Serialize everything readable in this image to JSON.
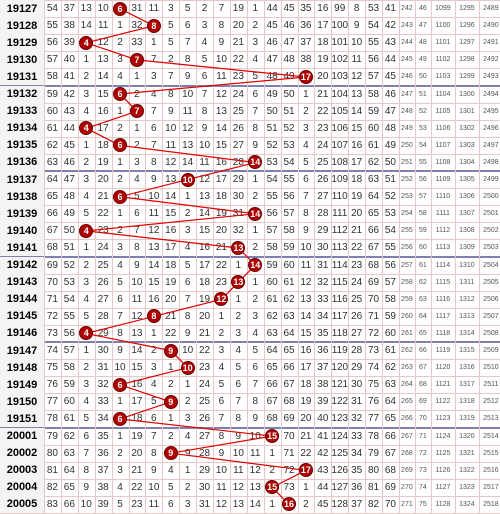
{
  "chart_data": {
    "type": "table",
    "title": "",
    "columns_visible": 21,
    "accent_color": "#b00000",
    "line_color": "#e00000",
    "rows": [
      {
        "issue": "19127",
        "cells": [
          "54",
          "37",
          "13",
          "10",
          "6",
          "31",
          "11",
          "3",
          "5",
          "2",
          "7",
          "19",
          "1",
          "44",
          "45",
          "35",
          "16",
          "99",
          "8",
          "53",
          "41",
          "242",
          "46",
          "1099",
          "1295",
          "2489"
        ],
        "ball": "6",
        "ball_col": 4
      },
      {
        "issue": "19128",
        "cells": [
          "55",
          "38",
          "14",
          "11",
          "1",
          "32",
          "8",
          "5",
          "6",
          "3",
          "8",
          "20",
          "2",
          "45",
          "46",
          "36",
          "17",
          "100",
          "9",
          "54",
          "42",
          "243",
          "47",
          "1100",
          "1296",
          "2490"
        ],
        "ball": "8",
        "ball_col": 6
      },
      {
        "issue": "19129",
        "cells": [
          "56",
          "39",
          "4",
          "12",
          "2",
          "33",
          "1",
          "5",
          "7",
          "4",
          "9",
          "21",
          "3",
          "46",
          "47",
          "37",
          "18",
          "101",
          "10",
          "55",
          "43",
          "244",
          "48",
          "1101",
          "1297",
          "2491"
        ],
        "ball": "4",
        "ball_col": 2
      },
      {
        "issue": "19130",
        "cells": [
          "57",
          "40",
          "1",
          "13",
          "3",
          "34",
          "7",
          "2",
          "8",
          "5",
          "10",
          "22",
          "4",
          "47",
          "48",
          "38",
          "19",
          "102",
          "11",
          "56",
          "44",
          "245",
          "49",
          "1102",
          "1298",
          "2492"
        ],
        "ball": "7",
        "ball_col": 5
      },
      {
        "issue": "19131",
        "cells": [
          "58",
          "41",
          "2",
          "14",
          "4",
          "1",
          "3",
          "7",
          "9",
          "6",
          "11",
          "23",
          "5",
          "48",
          "49",
          "17",
          "20",
          "103",
          "12",
          "57",
          "45",
          "246",
          "50",
          "1103",
          "1299",
          "2493"
        ],
        "ball": "17",
        "ball_col": 15
      },
      {
        "issue": "19132",
        "cells": [
          "59",
          "42",
          "3",
          "15",
          "6",
          "2",
          "4",
          "8",
          "10",
          "7",
          "12",
          "24",
          "6",
          "49",
          "50",
          "1",
          "21",
          "104",
          "13",
          "58",
          "46",
          "247",
          "51",
          "1104",
          "1300",
          "2494"
        ],
        "ball": "6",
        "ball_col": 4
      },
      {
        "issue": "19133",
        "cells": [
          "60",
          "43",
          "4",
          "16",
          "1",
          "3",
          "7",
          "9",
          "11",
          "8",
          "13",
          "25",
          "7",
          "50",
          "51",
          "2",
          "22",
          "105",
          "14",
          "59",
          "47",
          "248",
          "52",
          "1105",
          "1301",
          "2495"
        ],
        "ball": "7",
        "ball_col": 5
      },
      {
        "issue": "19134",
        "cells": [
          "61",
          "44",
          "4",
          "17",
          "2",
          "1",
          "6",
          "10",
          "12",
          "9",
          "14",
          "26",
          "8",
          "51",
          "52",
          "3",
          "23",
          "106",
          "15",
          "60",
          "48",
          "249",
          "53",
          "1106",
          "1302",
          "2496"
        ],
        "ball": "4",
        "ball_col": 2
      },
      {
        "issue": "19135",
        "cells": [
          "62",
          "45",
          "1",
          "18",
          "6",
          "2",
          "7",
          "11",
          "13",
          "10",
          "15",
          "27",
          "9",
          "52",
          "53",
          "4",
          "24",
          "107",
          "16",
          "61",
          "49",
          "250",
          "54",
          "1107",
          "1303",
          "2497"
        ],
        "ball": "6",
        "ball_col": 4
      },
      {
        "issue": "19136",
        "cells": [
          "63",
          "46",
          "2",
          "19",
          "1",
          "3",
          "8",
          "12",
          "14",
          "11",
          "16",
          "28",
          "14",
          "53",
          "54",
          "5",
          "25",
          "108",
          "17",
          "62",
          "50",
          "251",
          "55",
          "1108",
          "1304",
          "2498"
        ],
        "ball": "14",
        "ball_col": 12
      },
      {
        "issue": "19137",
        "cells": [
          "64",
          "47",
          "3",
          "20",
          "2",
          "4",
          "9",
          "13",
          "10",
          "12",
          "17",
          "29",
          "1",
          "54",
          "55",
          "6",
          "26",
          "109",
          "18",
          "63",
          "51",
          "252",
          "56",
          "1109",
          "1305",
          "2499"
        ],
        "ball": "10",
        "ball_col": 8
      },
      {
        "issue": "19138",
        "cells": [
          "65",
          "48",
          "4",
          "21",
          "6",
          "5",
          "10",
          "14",
          "1",
          "13",
          "18",
          "30",
          "2",
          "55",
          "56",
          "7",
          "27",
          "110",
          "19",
          "64",
          "52",
          "253",
          "57",
          "1110",
          "1306",
          "2500"
        ],
        "ball": "6",
        "ball_col": 4
      },
      {
        "issue": "19139",
        "cells": [
          "66",
          "49",
          "5",
          "22",
          "1",
          "6",
          "11",
          "15",
          "2",
          "14",
          "19",
          "31",
          "14",
          "56",
          "57",
          "8",
          "28",
          "111",
          "20",
          "65",
          "53",
          "254",
          "58",
          "1111",
          "1307",
          "2501"
        ],
        "ball": "14",
        "ball_col": 12
      },
      {
        "issue": "19140",
        "cells": [
          "67",
          "50",
          "4",
          "23",
          "2",
          "7",
          "12",
          "16",
          "3",
          "15",
          "20",
          "32",
          "1",
          "57",
          "58",
          "9",
          "29",
          "112",
          "21",
          "66",
          "54",
          "255",
          "59",
          "1112",
          "1308",
          "2502"
        ],
        "ball": "4",
        "ball_col": 2
      },
      {
        "issue": "19141",
        "cells": [
          "68",
          "51",
          "1",
          "24",
          "3",
          "8",
          "13",
          "17",
          "4",
          "16",
          "21",
          "13",
          "2",
          "58",
          "59",
          "10",
          "30",
          "113",
          "22",
          "67",
          "55",
          "256",
          "60",
          "1113",
          "1309",
          "2503"
        ],
        "ball": "13",
        "ball_col": 11
      },
      {
        "issue": "19142",
        "cells": [
          "69",
          "52",
          "2",
          "25",
          "4",
          "9",
          "14",
          "18",
          "5",
          "17",
          "22",
          "1",
          "14",
          "59",
          "60",
          "11",
          "31",
          "114",
          "23",
          "68",
          "56",
          "257",
          "61",
          "1114",
          "1310",
          "2504"
        ],
        "ball": "14",
        "ball_col": 12
      },
      {
        "issue": "19143",
        "cells": [
          "70",
          "53",
          "3",
          "26",
          "5",
          "10",
          "15",
          "19",
          "6",
          "18",
          "23",
          "13",
          "1",
          "60",
          "61",
          "12",
          "32",
          "115",
          "24",
          "69",
          "57",
          "258",
          "62",
          "1115",
          "1311",
          "2505"
        ],
        "ball": "13",
        "ball_col": 11
      },
      {
        "issue": "19144",
        "cells": [
          "71",
          "54",
          "4",
          "27",
          "6",
          "11",
          "16",
          "20",
          "7",
          "19",
          "12",
          "1",
          "2",
          "61",
          "62",
          "13",
          "33",
          "116",
          "25",
          "70",
          "58",
          "259",
          "63",
          "1116",
          "1312",
          "2506"
        ],
        "ball": "12",
        "ball_col": 10
      },
      {
        "issue": "19145",
        "cells": [
          "72",
          "55",
          "5",
          "28",
          "7",
          "12",
          "8",
          "21",
          "8",
          "20",
          "1",
          "2",
          "3",
          "62",
          "63",
          "14",
          "34",
          "117",
          "26",
          "71",
          "59",
          "260",
          "64",
          "1117",
          "1313",
          "2507"
        ],
        "ball": "8",
        "ball_col": 6
      },
      {
        "issue": "19146",
        "cells": [
          "73",
          "56",
          "4",
          "29",
          "8",
          "13",
          "1",
          "22",
          "9",
          "21",
          "2",
          "3",
          "4",
          "63",
          "64",
          "15",
          "35",
          "118",
          "27",
          "72",
          "60",
          "261",
          "65",
          "1118",
          "1314",
          "2508"
        ],
        "ball": "4",
        "ball_col": 2
      },
      {
        "issue": "19147",
        "cells": [
          "74",
          "57",
          "1",
          "30",
          "9",
          "14",
          "2",
          "9",
          "10",
          "22",
          "3",
          "4",
          "5",
          "64",
          "65",
          "16",
          "36",
          "119",
          "28",
          "73",
          "61",
          "262",
          "66",
          "1119",
          "1315",
          "2509"
        ],
        "ball": "9",
        "ball_col": 7
      },
      {
        "issue": "19148",
        "cells": [
          "75",
          "58",
          "2",
          "31",
          "10",
          "15",
          "3",
          "1",
          "10",
          "23",
          "4",
          "5",
          "6",
          "65",
          "66",
          "17",
          "37",
          "120",
          "29",
          "74",
          "62",
          "263",
          "67",
          "1120",
          "1316",
          "2510"
        ],
        "ball": "10",
        "ball_col": 8
      },
      {
        "issue": "19149",
        "cells": [
          "76",
          "59",
          "3",
          "32",
          "6",
          "16",
          "4",
          "2",
          "1",
          "24",
          "5",
          "6",
          "7",
          "66",
          "67",
          "18",
          "38",
          "121",
          "30",
          "75",
          "63",
          "264",
          "68",
          "1121",
          "1317",
          "2511"
        ],
        "ball": "6",
        "ball_col": 4
      },
      {
        "issue": "19150",
        "cells": [
          "77",
          "60",
          "4",
          "33",
          "1",
          "17",
          "5",
          "9",
          "2",
          "25",
          "6",
          "7",
          "8",
          "67",
          "68",
          "19",
          "39",
          "122",
          "31",
          "76",
          "64",
          "265",
          "69",
          "1122",
          "1318",
          "2512"
        ],
        "ball": "9",
        "ball_col": 7
      },
      {
        "issue": "19151",
        "cells": [
          "78",
          "61",
          "5",
          "34",
          "6",
          "18",
          "6",
          "1",
          "3",
          "26",
          "7",
          "8",
          "9",
          "68",
          "69",
          "20",
          "40",
          "123",
          "32",
          "77",
          "65",
          "266",
          "70",
          "1123",
          "1319",
          "2513"
        ],
        "ball": "6",
        "ball_col": 4
      },
      {
        "issue": "20001",
        "cells": [
          "79",
          "62",
          "6",
          "35",
          "1",
          "19",
          "7",
          "2",
          "4",
          "27",
          "8",
          "9",
          "10",
          "15",
          "70",
          "21",
          "41",
          "124",
          "33",
          "78",
          "66",
          "267",
          "71",
          "1124",
          "1320",
          "2514"
        ],
        "ball": "15",
        "ball_col": 13
      },
      {
        "issue": "20002",
        "cells": [
          "80",
          "63",
          "7",
          "36",
          "2",
          "20",
          "8",
          "3",
          "9",
          "28",
          "9",
          "10",
          "11",
          "1",
          "71",
          "22",
          "42",
          "125",
          "34",
          "79",
          "67",
          "268",
          "72",
          "1125",
          "1321",
          "2515"
        ],
        "ball": "9",
        "ball_col": 7
      },
      {
        "issue": "20003",
        "cells": [
          "81",
          "64",
          "8",
          "37",
          "3",
          "21",
          "9",
          "4",
          "1",
          "29",
          "10",
          "11",
          "12",
          "2",
          "72",
          "17",
          "43",
          "126",
          "35",
          "80",
          "68",
          "269",
          "73",
          "1126",
          "1322",
          "2516"
        ],
        "ball": "17",
        "ball_col": 15
      },
      {
        "issue": "20004",
        "cells": [
          "82",
          "65",
          "9",
          "38",
          "4",
          "22",
          "10",
          "5",
          "2",
          "30",
          "11",
          "12",
          "13",
          "15",
          "73",
          "1",
          "44",
          "127",
          "36",
          "81",
          "69",
          "270",
          "74",
          "1127",
          "1323",
          "2517"
        ],
        "ball": "15",
        "ball_col": 13
      },
      {
        "issue": "20005",
        "cells": [
          "83",
          "66",
          "10",
          "39",
          "5",
          "23",
          "11",
          "6",
          "3",
          "31",
          "12",
          "13",
          "14",
          "1",
          "16",
          "2",
          "45",
          "128",
          "37",
          "82",
          "70",
          "271",
          "75",
          "1128",
          "1324",
          "2518"
        ],
        "ball": "16",
        "ball_col": 14
      }
    ]
  }
}
